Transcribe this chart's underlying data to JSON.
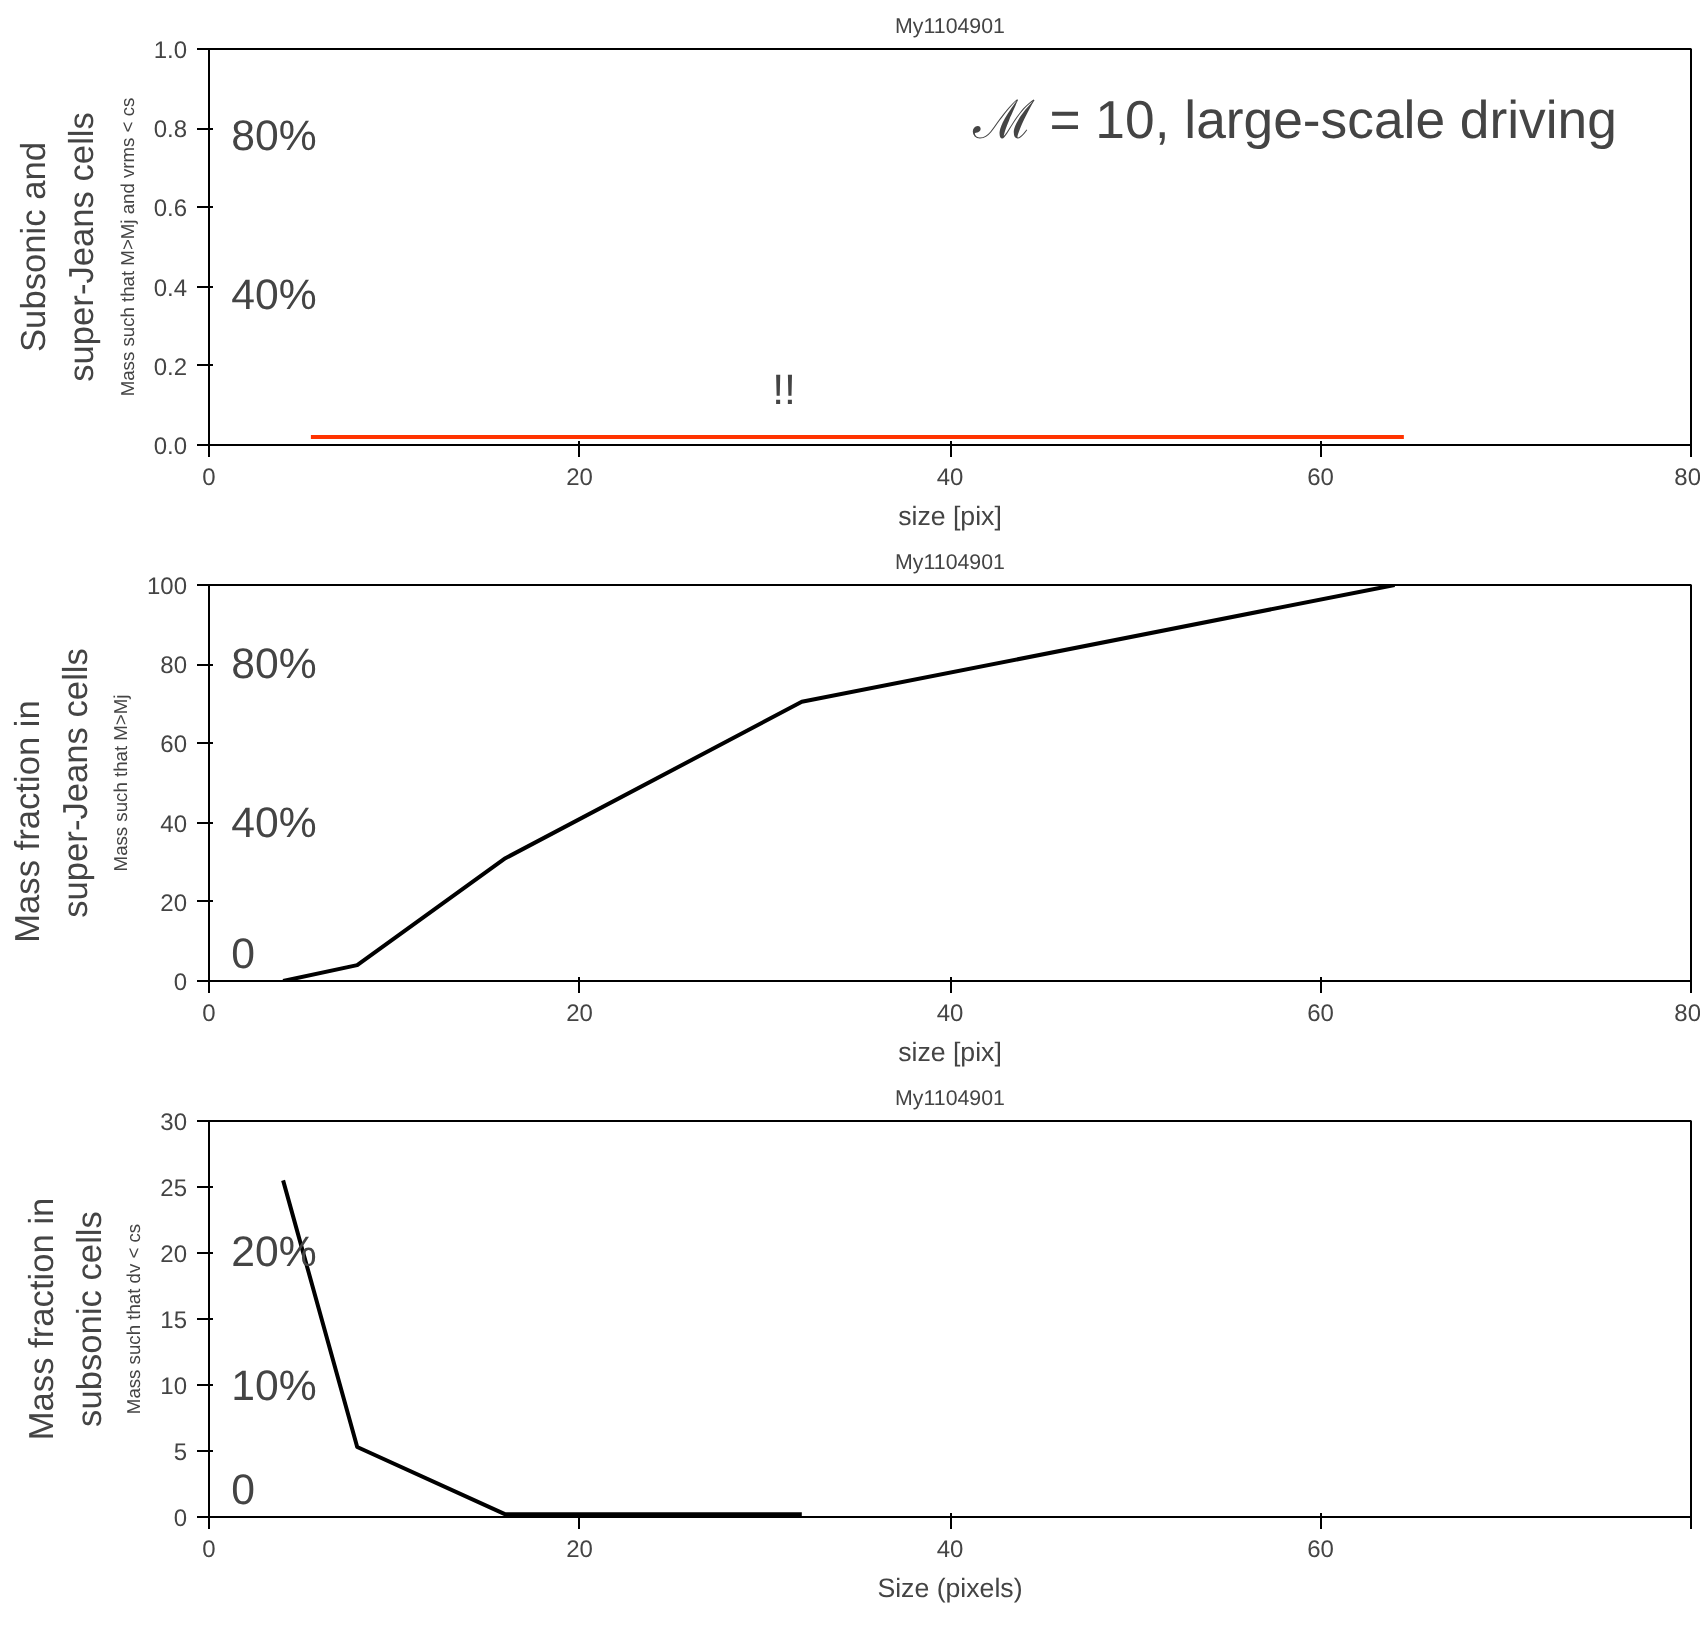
{
  "chart_data": [
    {
      "type": "line",
      "title": "My1104901",
      "xlabel": "size [pix]",
      "ylabel": "Mass such that M>Mj and vrms < cs",
      "annotations": [
        "Subsonic and\nsuper-Jeans cells",
        "ℳ = 10, large-scale driving",
        "80%",
        "40%",
        "!!"
      ],
      "xlim": [
        0,
        80
      ],
      "xticks": [
        0,
        20,
        40,
        60,
        80
      ],
      "ylim": [
        0,
        1
      ],
      "yticks": [
        {
          "value": 0,
          "label": "0.0"
        },
        0.2,
        0.4,
        0.6,
        0.8,
        {
          "value": 1,
          "label": "1.0"
        }
      ],
      "grid": false,
      "series": [
        {
          "color": "#ff3300",
          "x": [
            5.5,
            64.5
          ],
          "values": [
            0.02,
            0.02
          ]
        }
      ]
    },
    {
      "type": "line",
      "title": "My1104901",
      "xlabel": "size [pix]",
      "ylabel": "Mass such that M>Mj",
      "annotations": [
        "Mass     fraction     in\nsuper-Jeans cells",
        "80%",
        "40%",
        "0"
      ],
      "xlim": [
        0,
        80
      ],
      "xticks": [
        0,
        20,
        40,
        60,
        80
      ],
      "ylim": [
        0,
        100
      ],
      "yticks": [
        0,
        20,
        40,
        60,
        80,
        100
      ],
      "grid": false,
      "series": [
        {
          "color": "#000000",
          "x": [
            4,
            8,
            16,
            32,
            64
          ],
          "values": [
            0,
            4,
            31,
            70.5,
            100
          ]
        }
      ]
    },
    {
      "type": "line",
      "title": "My1104901",
      "xlabel": "Size (pixels)",
      "ylabel": "Mass such that dv < cs",
      "annotations": [
        "Mass fraction in\nsubsonic cells",
        "20%",
        "10%",
        "0"
      ],
      "xlim": [
        0,
        80
      ],
      "xticks": [
        0,
        20,
        40,
        60,
        {
          "value": 80,
          "label": null
        }
      ],
      "ylim": [
        0,
        30
      ],
      "yticks": [
        0,
        5,
        10,
        15,
        20,
        25,
        30
      ],
      "grid": false,
      "series": [
        {
          "color": "#000000",
          "x": [
            4,
            8,
            16,
            32
          ],
          "values": [
            25.5,
            5.3,
            0.2,
            0.2
          ]
        }
      ]
    }
  ]
}
